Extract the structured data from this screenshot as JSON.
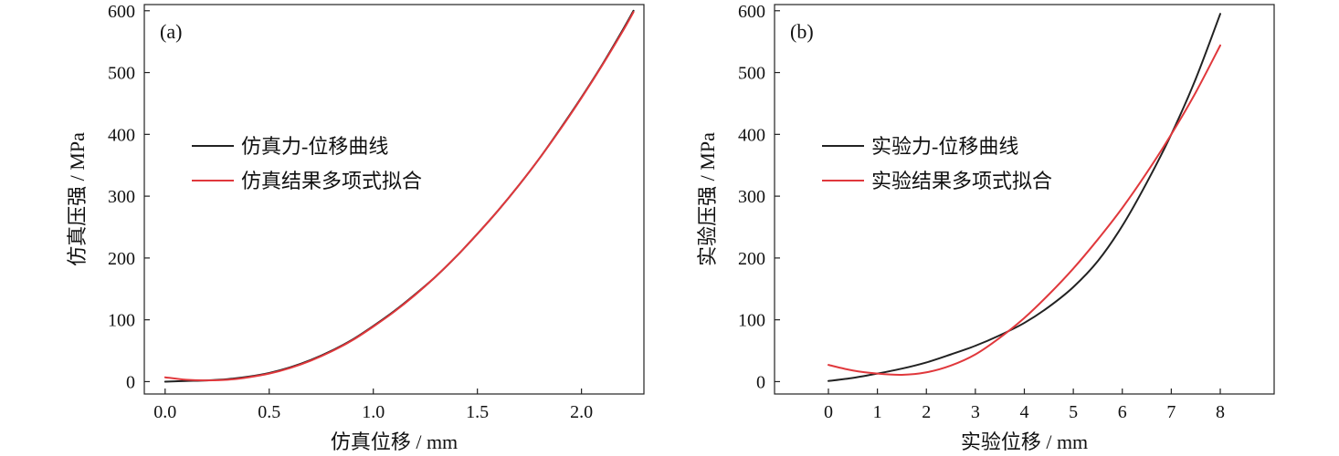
{
  "chart_data": [
    {
      "type": "line",
      "panel_label": "(a)",
      "xlabel": "仿真位移 / mm",
      "ylabel": "仿真压强 / MPa",
      "xlim": [
        -0.1,
        2.3
      ],
      "ylim": [
        -20,
        610
      ],
      "xticks": [
        0.0,
        0.5,
        1.0,
        1.5,
        2.0
      ],
      "xtick_labels": [
        "0.0",
        "0.5",
        "1.0",
        "1.5",
        "2.0"
      ],
      "yticks": [
        0,
        100,
        200,
        300,
        400,
        500,
        600
      ],
      "ytick_labels": [
        "0",
        "100",
        "200",
        "300",
        "400",
        "500",
        "600"
      ],
      "legend_position": "center-left",
      "series": [
        {
          "name": "仿真力-位移曲线",
          "color": "#222222",
          "x": [
            0.0,
            0.1,
            0.2,
            0.3,
            0.4,
            0.5,
            0.6,
            0.7,
            0.8,
            0.9,
            1.0,
            1.1,
            1.2,
            1.3,
            1.4,
            1.5,
            1.6,
            1.7,
            1.8,
            1.9,
            2.0,
            2.1,
            2.2,
            2.25
          ],
          "y": [
            0,
            1,
            2,
            4,
            8,
            14,
            23,
            35,
            50,
            68,
            90,
            114,
            141,
            170,
            203,
            239,
            277,
            318,
            362,
            410,
            460,
            513,
            570,
            600
          ]
        },
        {
          "name": "仿真结果多项式拟合",
          "color": "#e0383c",
          "x": [
            0.0,
            0.1,
            0.2,
            0.3,
            0.4,
            0.5,
            0.6,
            0.7,
            0.8,
            0.9,
            1.0,
            1.1,
            1.2,
            1.3,
            1.4,
            1.5,
            1.6,
            1.7,
            1.8,
            1.9,
            2.0,
            2.1,
            2.2,
            2.25
          ],
          "y": [
            7,
            3,
            2,
            3,
            7,
            13,
            22,
            34,
            49,
            67,
            89,
            113,
            140,
            170,
            203,
            239,
            277,
            318,
            362,
            409,
            459,
            512,
            568,
            598
          ]
        }
      ]
    },
    {
      "type": "line",
      "panel_label": "(b)",
      "xlabel": "实验位移 / mm",
      "ylabel": "实验压强 / MPa",
      "xlim": [
        -1.1,
        9.1
      ],
      "ylim": [
        -20,
        610
      ],
      "xticks": [
        0,
        1,
        2,
        3,
        4,
        5,
        6,
        7,
        8
      ],
      "xtick_labels": [
        "0",
        "1",
        "2",
        "3",
        "4",
        "5",
        "6",
        "7",
        "8"
      ],
      "yticks": [
        0,
        100,
        200,
        300,
        400,
        500,
        600
      ],
      "ytick_labels": [
        "0",
        "100",
        "200",
        "300",
        "400",
        "500",
        "600"
      ],
      "legend_position": "center-left",
      "series": [
        {
          "name": "实验力-位移曲线",
          "color": "#222222",
          "x": [
            0,
            0.5,
            1,
            1.5,
            2,
            2.5,
            3,
            3.5,
            4,
            4.5,
            5,
            5.5,
            6,
            6.5,
            7,
            7.5,
            8
          ],
          "y": [
            1,
            6,
            13,
            21,
            31,
            44,
            58,
            75,
            95,
            121,
            153,
            195,
            252,
            322,
            400,
            490,
            595
          ]
        },
        {
          "name": "实验结果多项式拟合",
          "color": "#e0383c",
          "x": [
            0,
            0.5,
            1,
            1.5,
            2,
            2.5,
            3,
            3.5,
            4,
            4.5,
            5,
            5.5,
            6,
            6.5,
            7,
            7.5,
            8
          ],
          "y": [
            27,
            18,
            13,
            11,
            15,
            26,
            44,
            71,
            103,
            141,
            183,
            230,
            281,
            338,
            400,
            468,
            544
          ]
        }
      ]
    }
  ]
}
